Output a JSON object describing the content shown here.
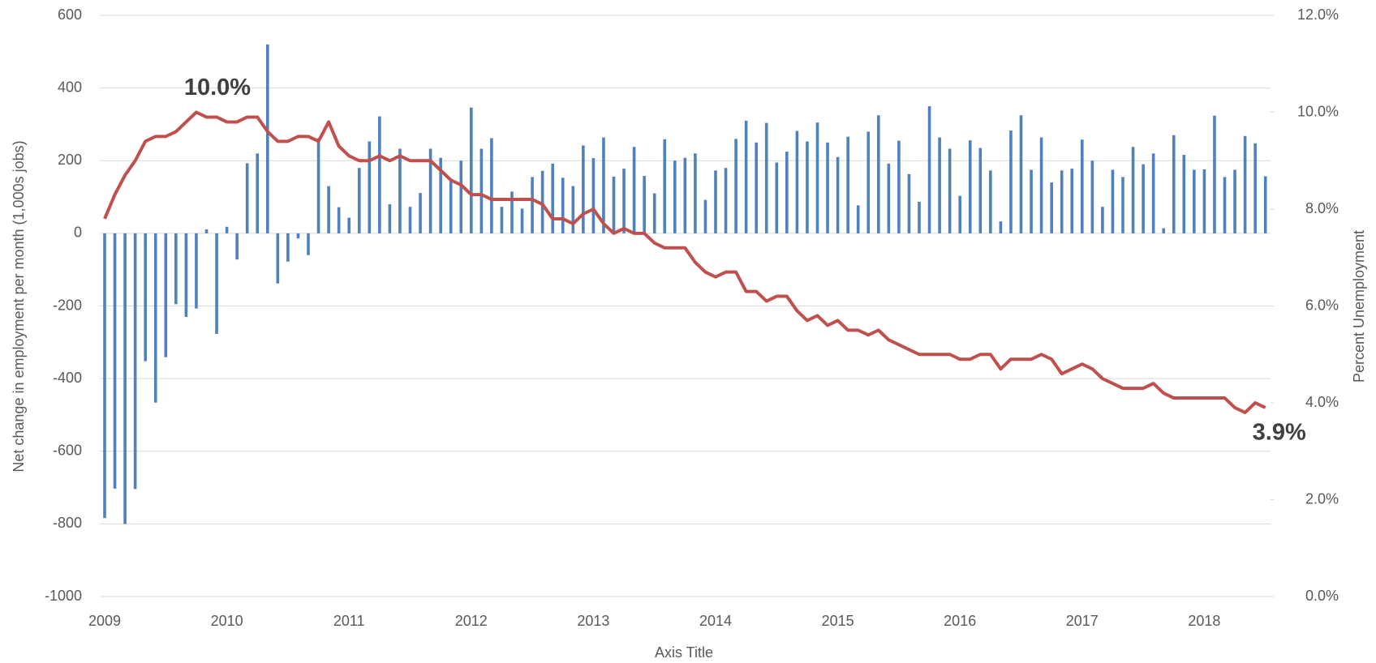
{
  "chart_data": {
    "type": "bar",
    "x_label": "Axis Title",
    "y_label": "Net change in employment per month (1,000s jobs)",
    "y2_label": "Percent Unemployment",
    "categories": [
      "2009",
      null,
      null,
      null,
      null,
      null,
      null,
      null,
      null,
      null,
      null,
      null,
      "2010",
      null,
      null,
      null,
      null,
      null,
      null,
      null,
      null,
      null,
      null,
      null,
      "2011",
      null,
      null,
      null,
      null,
      null,
      null,
      null,
      null,
      null,
      null,
      null,
      "2012",
      null,
      null,
      null,
      null,
      null,
      null,
      null,
      null,
      null,
      null,
      null,
      "2013",
      null,
      null,
      null,
      null,
      null,
      null,
      null,
      null,
      null,
      null,
      null,
      "2014",
      null,
      null,
      null,
      null,
      null,
      null,
      null,
      null,
      null,
      null,
      null,
      "2015",
      null,
      null,
      null,
      null,
      null,
      null,
      null,
      null,
      null,
      null,
      null,
      "2016",
      null,
      null,
      null,
      null,
      null,
      null,
      null,
      null,
      null,
      null,
      null,
      "2017",
      null,
      null,
      null,
      null,
      null,
      null,
      null,
      null,
      null,
      null,
      null,
      "2018",
      null,
      null,
      null,
      null,
      null,
      null
    ],
    "series": [
      {
        "type": "bar",
        "color": "#4f81bd",
        "values": [
          -784,
          -703,
          -800,
          -704,
          -352,
          -466,
          -341,
          -195,
          -230,
          -207,
          11,
          -277,
          18,
          -72,
          193,
          220,
          520,
          -138,
          -78,
          -14,
          -60,
          262,
          130,
          72,
          43,
          180,
          253,
          322,
          80,
          233,
          73,
          111,
          233,
          208,
          145,
          200,
          346,
          233,
          262,
          73,
          115,
          68,
          155,
          172,
          192,
          153,
          130,
          242,
          207,
          264,
          156,
          178,
          238,
          158,
          110,
          259,
          200,
          208,
          220,
          92,
          173,
          180,
          260,
          310,
          250,
          304,
          195,
          225,
          282,
          253,
          305,
          250,
          210,
          266,
          77,
          280,
          325,
          192,
          255,
          163,
          87,
          350,
          264,
          233,
          103,
          256,
          235,
          173,
          33,
          283,
          325,
          175,
          264,
          140,
          173,
          178,
          258,
          200,
          73,
          175,
          155,
          238,
          190,
          220,
          14,
          270,
          216,
          175,
          176,
          324,
          155,
          175,
          268,
          248,
          157
        ]
      },
      {
        "type": "line",
        "axis": "y2",
        "color": "#c0504d",
        "values": [
          7.8,
          8.3,
          8.7,
          9.0,
          9.4,
          9.5,
          9.5,
          9.6,
          9.8,
          10.0,
          9.9,
          9.9,
          9.8,
          9.8,
          9.9,
          9.9,
          9.6,
          9.4,
          9.4,
          9.5,
          9.5,
          9.4,
          9.8,
          9.3,
          9.1,
          9.0,
          9.0,
          9.1,
          9.0,
          9.1,
          9.0,
          9.0,
          9.0,
          8.8,
          8.6,
          8.5,
          8.3,
          8.3,
          8.2,
          8.2,
          8.2,
          8.2,
          8.2,
          8.1,
          7.8,
          7.8,
          7.7,
          7.9,
          8.0,
          7.7,
          7.5,
          7.6,
          7.5,
          7.5,
          7.3,
          7.2,
          7.2,
          7.2,
          6.9,
          6.7,
          6.6,
          6.7,
          6.7,
          6.3,
          6.3,
          6.1,
          6.2,
          6.2,
          5.9,
          5.7,
          5.8,
          5.6,
          5.7,
          5.5,
          5.5,
          5.4,
          5.5,
          5.3,
          5.2,
          5.1,
          5.0,
          5.0,
          5.0,
          5.0,
          4.9,
          4.9,
          5.0,
          5.0,
          4.7,
          4.9,
          4.9,
          4.9,
          5.0,
          4.9,
          4.6,
          4.7,
          4.8,
          4.7,
          4.5,
          4.4,
          4.3,
          4.3,
          4.3,
          4.4,
          4.2,
          4.1,
          4.1,
          4.1,
          4.1,
          4.1,
          4.1,
          3.9,
          3.8,
          4.0,
          3.9
        ],
        "value_labels": [
          null,
          null,
          null,
          null,
          null,
          null,
          null,
          null,
          null,
          "10.0%",
          null,
          null,
          null,
          null,
          null,
          null,
          null,
          null,
          null,
          null,
          null,
          null,
          null,
          null,
          null,
          null,
          null,
          null,
          null,
          null,
          null,
          null,
          null,
          null,
          null,
          null,
          null,
          null,
          null,
          null,
          null,
          null,
          null,
          null,
          null,
          null,
          null,
          null,
          null,
          null,
          null,
          null,
          null,
          null,
          null,
          null,
          null,
          null,
          null,
          null,
          null,
          null,
          null,
          null,
          null,
          null,
          null,
          null,
          null,
          null,
          null,
          null,
          null,
          null,
          null,
          null,
          null,
          null,
          null,
          null,
          null,
          null,
          null,
          null,
          null,
          null,
          null,
          null,
          null,
          null,
          null,
          null,
          null,
          null,
          null,
          null,
          null,
          null,
          null,
          null,
          null,
          null,
          null,
          null,
          null,
          null,
          null,
          null,
          null,
          null,
          null,
          null,
          null,
          null,
          "3.9%"
        ]
      }
    ],
    "ylim": [
      -1000,
      600
    ],
    "yticks": [
      -1000,
      -800,
      -600,
      -400,
      -200,
      0,
      200,
      400,
      600
    ],
    "y2lim": [
      0,
      12
    ],
    "y2ticks": [
      {
        "value": 0,
        "label": "0.0%"
      },
      {
        "value": 2,
        "label": "2.0%"
      },
      {
        "value": 4,
        "label": "4.0%"
      },
      {
        "value": 6,
        "label": "6.0%"
      },
      {
        "value": 8,
        "label": "8.0%"
      },
      {
        "value": 10,
        "label": "10.0%"
      },
      {
        "value": 12,
        "label": "12.0%"
      }
    ],
    "grid": true
  }
}
